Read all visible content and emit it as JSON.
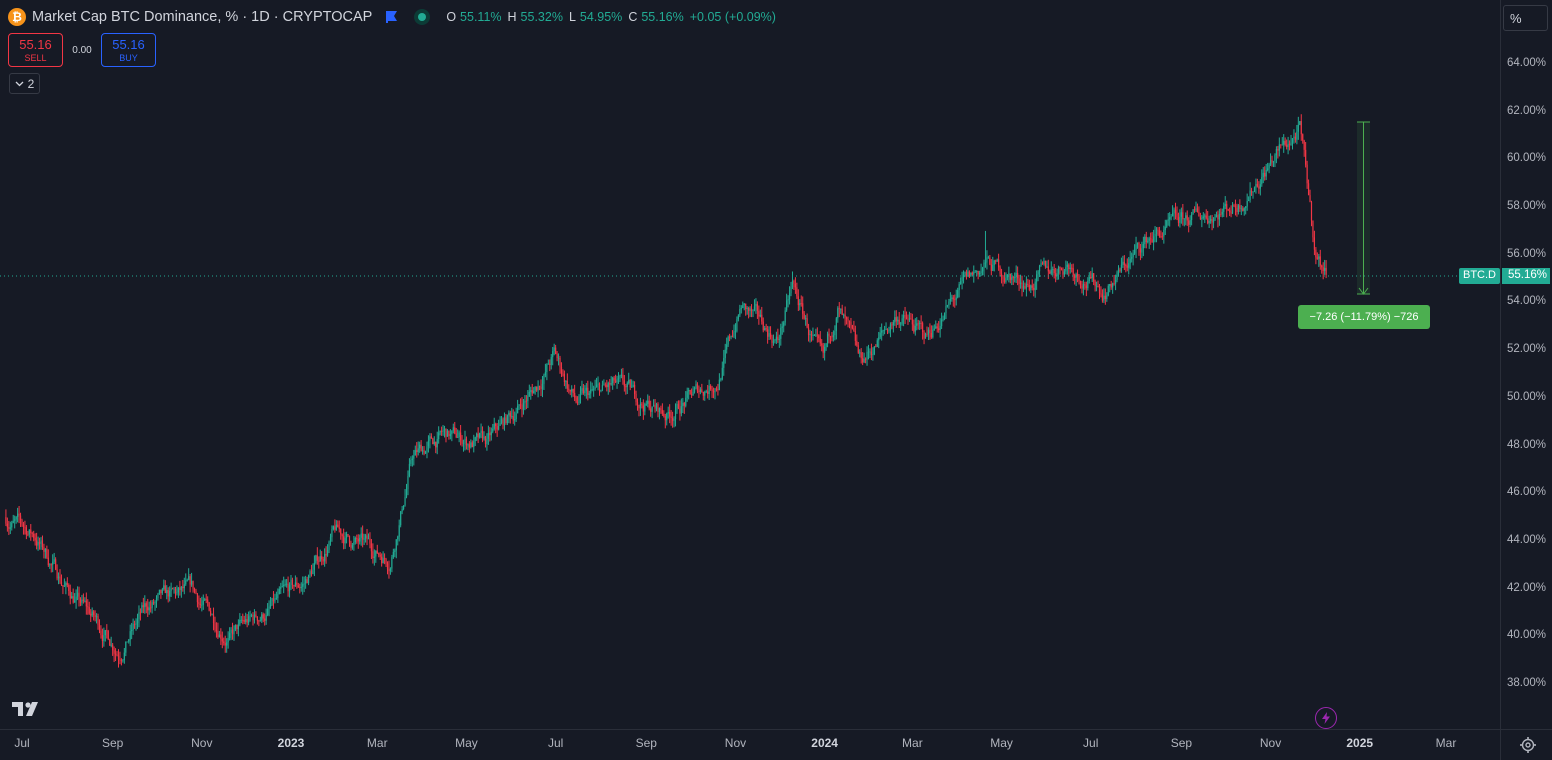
{
  "header": {
    "title": "Market Cap BTC Dominance, % · 1D · CRYPTOCAP",
    "logo_glyph": "₿",
    "ohlc": [
      {
        "key": "O",
        "value": "55.11%"
      },
      {
        "key": "H",
        "value": "55.32%"
      },
      {
        "key": "L",
        "value": "54.95%"
      },
      {
        "key": "C",
        "value": "55.16%"
      }
    ],
    "change": "+0.05 (+0.09%)",
    "change_color": "#22ab94"
  },
  "trade": {
    "sell_price": "55.16",
    "sell_label": "SELL",
    "spread": "0.00",
    "buy_price": "55.16",
    "buy_label": "BUY"
  },
  "indicators_toggle": {
    "count": "2"
  },
  "scale_mode": "%",
  "price_axis": {
    "labels": [
      "64.00%",
      "62.00%",
      "60.00%",
      "58.00%",
      "56.00%",
      "54.00%",
      "52.00%",
      "50.00%",
      "48.00%",
      "46.00%",
      "44.00%",
      "42.00%",
      "40.00%",
      "38.00%"
    ],
    "values": [
      64,
      62,
      60,
      58,
      56,
      54,
      52,
      50,
      48,
      46,
      44,
      42,
      40,
      38
    ],
    "symbol_tag": "BTC.D",
    "last_price": "55.16%"
  },
  "time_axis": {
    "labels": [
      "Jul",
      "Sep",
      "Nov",
      "2023",
      "Mar",
      "May",
      "Jul",
      "Sep",
      "Nov",
      "2024",
      "Mar",
      "May",
      "Jul",
      "Sep",
      "Nov",
      "2025",
      "Mar"
    ],
    "year_labels": [
      "2023",
      "2024",
      "2025"
    ]
  },
  "measure": {
    "label": "−7.26 (−11.79%) −726"
  },
  "colors": {
    "up": "#22ab94",
    "down": "#f23645",
    "background": "#161a25",
    "measure": "#4caf50"
  },
  "chart_data": {
    "type": "candlestick",
    "title": "Market Cap BTC Dominance, % · 1D · CRYPTOCAP",
    "ylabel": "%",
    "ylim": [
      36.8,
      65.2
    ],
    "x_start": "2022-06-20",
    "x_end": "2025-04-01",
    "last": 55.16,
    "close_path": [
      {
        "date": "2022-06-20",
        "value": 45.0
      },
      {
        "date": "2022-07-10",
        "value": 44.2
      },
      {
        "date": "2022-08-01",
        "value": 42.0
      },
      {
        "date": "2022-09-05",
        "value": 39.5
      },
      {
        "date": "2022-09-25",
        "value": 41.2
      },
      {
        "date": "2022-10-25",
        "value": 41.8
      },
      {
        "date": "2022-11-20",
        "value": 40.0
      },
      {
        "date": "2022-12-15",
        "value": 41.0
      },
      {
        "date": "2023-01-10",
        "value": 42.2
      },
      {
        "date": "2023-01-31",
        "value": 44.3
      },
      {
        "date": "2023-03-10",
        "value": 43.3
      },
      {
        "date": "2023-03-25",
        "value": 47.5
      },
      {
        "date": "2023-04-15",
        "value": 48.4
      },
      {
        "date": "2023-05-15",
        "value": 48.0
      },
      {
        "date": "2023-06-18",
        "value": 50.5
      },
      {
        "date": "2023-06-30",
        "value": 51.8
      },
      {
        "date": "2023-07-15",
        "value": 49.8
      },
      {
        "date": "2023-08-10",
        "value": 50.4
      },
      {
        "date": "2023-09-15",
        "value": 49.3
      },
      {
        "date": "2023-10-20",
        "value": 50.8
      },
      {
        "date": "2023-11-05",
        "value": 53.8
      },
      {
        "date": "2023-11-30",
        "value": 52.4
      },
      {
        "date": "2023-12-10",
        "value": 54.6
      },
      {
        "date": "2023-12-31",
        "value": 51.2
      },
      {
        "date": "2024-01-10",
        "value": 53.8
      },
      {
        "date": "2024-01-25",
        "value": 51.3
      },
      {
        "date": "2024-02-20",
        "value": 53.5
      },
      {
        "date": "2024-03-10",
        "value": 52.5
      },
      {
        "date": "2024-04-05",
        "value": 54.6
      },
      {
        "date": "2024-04-20",
        "value": 55.6
      },
      {
        "date": "2024-05-20",
        "value": 54.8
      },
      {
        "date": "2024-06-15",
        "value": 55.7
      },
      {
        "date": "2024-07-10",
        "value": 54.5
      },
      {
        "date": "2024-08-10",
        "value": 56.7
      },
      {
        "date": "2024-09-10",
        "value": 57.5
      },
      {
        "date": "2024-10-10",
        "value": 58.2
      },
      {
        "date": "2024-11-05",
        "value": 60.2
      },
      {
        "date": "2024-11-21",
        "value": 61.2
      },
      {
        "date": "2024-12-02",
        "value": 56.0
      },
      {
        "date": "2024-12-09",
        "value": 55.16
      }
    ],
    "spikes": [
      {
        "date": "2024-04-20",
        "high": 57.0
      },
      {
        "date": "2023-12-10",
        "high": 55.3
      },
      {
        "date": "2024-11-21",
        "high": 61.6
      }
    ],
    "measure": {
      "from": 61.6,
      "to": 54.34,
      "change": -7.26,
      "change_percent": -11.79,
      "bars": -726
    }
  }
}
